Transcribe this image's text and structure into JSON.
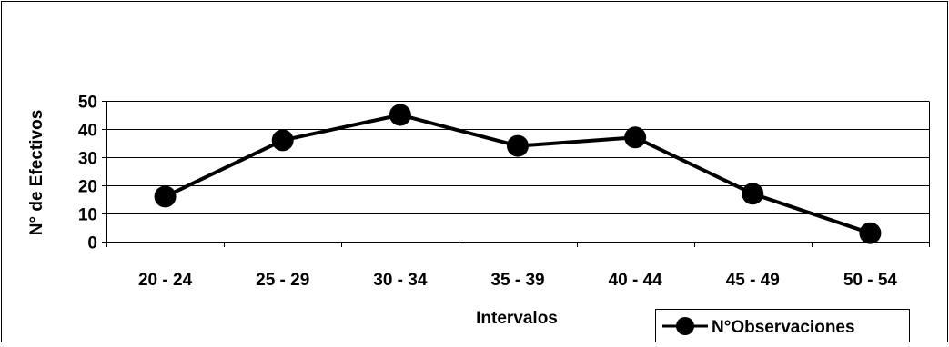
{
  "chart_data": {
    "type": "line",
    "categories": [
      "20 - 24",
      "25 - 29",
      "30 - 34",
      "35 - 39",
      "40 - 44",
      "45 - 49",
      "50 - 54"
    ],
    "series": [
      {
        "name": "N°Observaciones",
        "values": [
          16,
          36,
          45,
          34,
          37,
          17,
          3
        ],
        "color": "#000000"
      }
    ],
    "xlabel": "Intervalos",
    "ylabel": "N° de Efectivos",
    "ylim": [
      0,
      50
    ],
    "yticks": [
      "0",
      "10",
      "20",
      "30",
      "40",
      "50"
    ],
    "grid": true,
    "legend": "bottom-right",
    "marker": "filled-circle"
  }
}
